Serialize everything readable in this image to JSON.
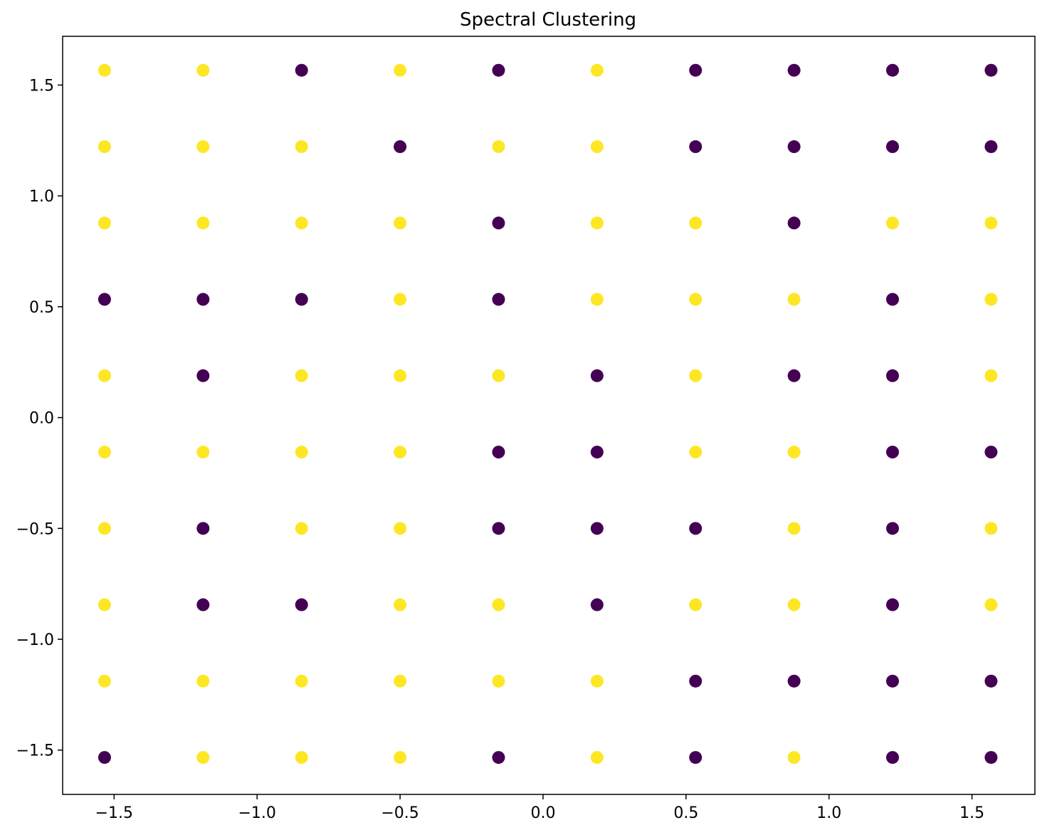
{
  "chart_data": {
    "type": "scatter",
    "title": "Spectral Clustering",
    "xlabel": "",
    "ylabel": "",
    "xlim": [
      -1.68,
      1.72
    ],
    "ylim": [
      -1.7,
      1.72
    ],
    "grid": false,
    "legend": "none",
    "x_ticks": [
      -1.5,
      -1.0,
      -0.5,
      0.0,
      0.5,
      1.0,
      1.5
    ],
    "x_tick_labels": [
      "−1.5",
      "−1.0",
      "−0.5",
      "0.0",
      "0.5",
      "1.0",
      "1.5"
    ],
    "y_ticks": [
      -1.5,
      -1.0,
      -0.5,
      0.0,
      0.5,
      1.0,
      1.5
    ],
    "y_tick_labels": [
      "−1.5",
      "−1.0",
      "−0.5",
      "0.0",
      "0.5",
      "1.0",
      "1.5"
    ],
    "x_grid": [
      -1.5333,
      -1.1889,
      -0.8444,
      -0.5,
      -0.1556,
      0.1889,
      0.5333,
      0.8778,
      1.2222,
      1.5667
    ],
    "y_grid": [
      1.5667,
      1.2222,
      0.8778,
      0.5333,
      0.1889,
      -0.1556,
      -0.5,
      -0.8444,
      -1.1889,
      -1.5333
    ],
    "cluster_colors": [
      "#440154",
      "#fde725"
    ],
    "labels": [
      [
        1,
        1,
        0,
        1,
        0,
        1,
        0,
        0,
        0,
        0
      ],
      [
        1,
        1,
        1,
        0,
        1,
        1,
        0,
        0,
        0,
        0
      ],
      [
        1,
        1,
        1,
        1,
        0,
        1,
        1,
        0,
        1,
        1
      ],
      [
        0,
        0,
        0,
        1,
        0,
        1,
        1,
        1,
        0,
        1
      ],
      [
        1,
        0,
        1,
        1,
        1,
        0,
        1,
        0,
        0,
        1
      ],
      [
        1,
        1,
        1,
        1,
        0,
        0,
        1,
        1,
        0,
        0
      ],
      [
        1,
        0,
        1,
        1,
        0,
        0,
        0,
        1,
        0,
        1
      ],
      [
        1,
        0,
        0,
        1,
        1,
        0,
        1,
        1,
        0,
        1
      ],
      [
        1,
        1,
        1,
        1,
        1,
        1,
        0,
        0,
        0,
        0
      ],
      [
        0,
        1,
        1,
        1,
        0,
        1,
        0,
        1,
        0,
        0
      ]
    ]
  }
}
